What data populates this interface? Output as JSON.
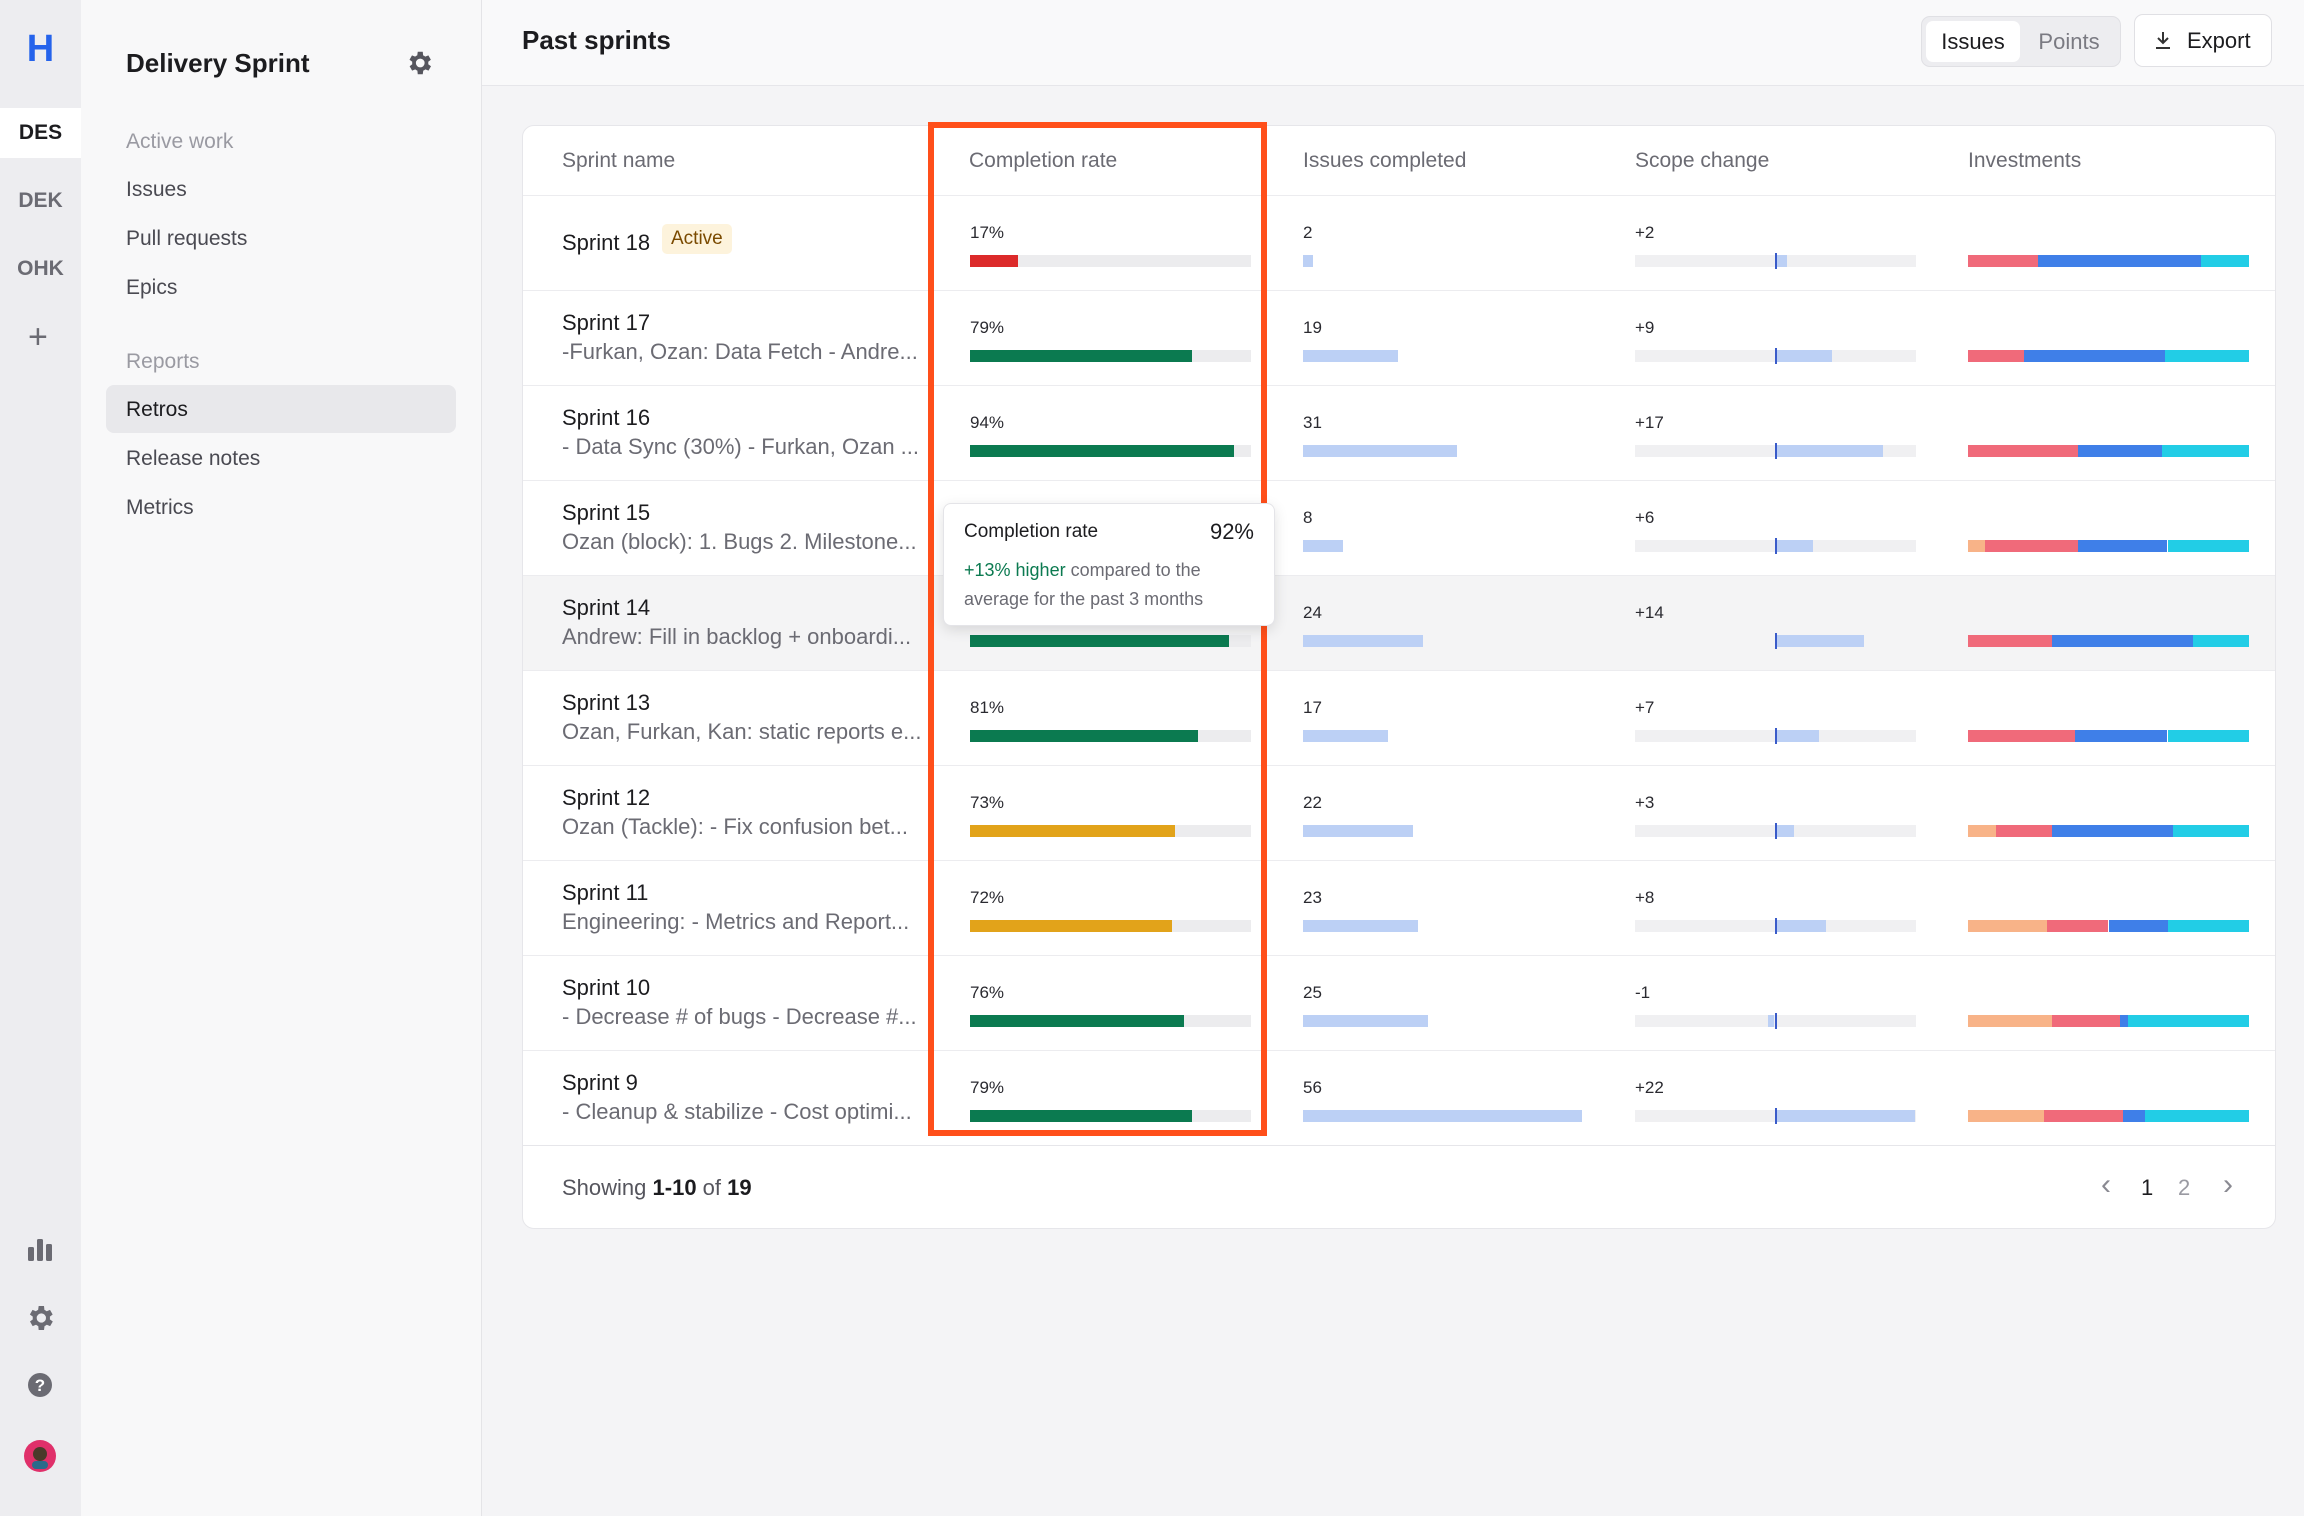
{
  "rail": {
    "logo": "H",
    "workspaces": [
      "DES",
      "DEK",
      "OHK"
    ]
  },
  "sidebar": {
    "title": "Delivery Sprint",
    "active": "Retros",
    "sections": [
      {
        "heading": "Active work",
        "items": [
          "Issues",
          "Pull requests",
          "Epics"
        ]
      },
      {
        "heading": "Reports",
        "items": [
          "Retros",
          "Release notes",
          "Metrics"
        ]
      }
    ]
  },
  "header": {
    "title": "Past sprints",
    "toggle": [
      "Issues",
      "Points"
    ],
    "export": "Export"
  },
  "table": {
    "columns": [
      "Sprint name",
      "Completion rate",
      "Issues completed",
      "Scope change",
      "Investments"
    ],
    "investment_colors": [
      "#f8b388",
      "#f06a7a",
      "#3f7fe8",
      "#22cde6"
    ],
    "rows": [
      {
        "name": "Sprint 18",
        "badge": "Active",
        "completion": {
          "value": 17,
          "label": "17%",
          "color": "#dc2a2a"
        },
        "issues": 2,
        "scope": {
          "value": 2,
          "label": "+2"
        },
        "investments": [
          0,
          25,
          58,
          17
        ]
      },
      {
        "name": "Sprint 17",
        "note": "-Furkan, Ozan: Data Fetch - Andre...",
        "completion": {
          "value": 79,
          "label": "79%",
          "color": "#0b7a50"
        },
        "issues": 19,
        "scope": {
          "value": 9,
          "label": "+9"
        },
        "investments": [
          0,
          20,
          50,
          30
        ]
      },
      {
        "name": "Sprint 16",
        "note": "- Data Sync (30%) - Furkan, Ozan ...",
        "completion": {
          "value": 94,
          "label": "94%",
          "color": "#0b7a50"
        },
        "issues": 31,
        "scope": {
          "value": 17,
          "label": "+17"
        },
        "investments": [
          0,
          39,
          30,
          31
        ]
      },
      {
        "name": "Sprint 15",
        "note": "Ozan (block): 1. Bugs 2. Milestone...",
        "completion": null,
        "issues": 8,
        "scope": {
          "value": 6,
          "label": "+6"
        },
        "investments": [
          6,
          33,
          32,
          29
        ]
      },
      {
        "name": "Sprint 14",
        "note": "Andrew: Fill in backlog + onboardi...",
        "completion": {
          "value": 92,
          "color": "#0b7a50"
        },
        "issues": 24,
        "scope": {
          "value": 14,
          "label": "+14"
        },
        "investments": [
          0,
          30,
          50,
          20
        ]
      },
      {
        "name": "Sprint 13",
        "note": "Ozan, Furkan, Kan: static reports e...",
        "completion": {
          "value": 81,
          "label": "81%",
          "color": "#0b7a50"
        },
        "issues": 17,
        "scope": {
          "value": 7,
          "label": "+7"
        },
        "investments": [
          0,
          38,
          33,
          29
        ]
      },
      {
        "name": "Sprint 12",
        "note": "Ozan (Tackle): - Fix confusion bet...",
        "completion": {
          "value": 73,
          "label": "73%",
          "color": "#e2a31a"
        },
        "issues": 22,
        "scope": {
          "value": 3,
          "label": "+3"
        },
        "investments": [
          10,
          20,
          43,
          27
        ]
      },
      {
        "name": "Sprint 11",
        "note": "Engineering: - Metrics and Report...",
        "completion": {
          "value": 72,
          "label": "72%",
          "color": "#e2a31a"
        },
        "issues": 23,
        "scope": {
          "value": 8,
          "label": "+8"
        },
        "investments": [
          28,
          22,
          21,
          29
        ]
      },
      {
        "name": "Sprint 10",
        "note": "- Decrease # of bugs - Decrease #...",
        "completion": {
          "value": 76,
          "label": "76%",
          "color": "#0b7a50"
        },
        "issues": 25,
        "scope": {
          "value": -1,
          "label": "-1"
        },
        "investments": [
          30,
          24,
          3,
          43
        ]
      },
      {
        "name": "Sprint 9",
        "note": "- Cleanup & stabilize - Cost optimi...",
        "completion": {
          "value": 79,
          "label": "79%",
          "color": "#0b7a50"
        },
        "issues": 56,
        "scope": {
          "value": 22,
          "label": "+22"
        },
        "investments": [
          27,
          28,
          8,
          37
        ]
      }
    ]
  },
  "tooltip": {
    "title": "Completion rate",
    "value": "92%",
    "highlight": "+13% higher",
    "text": "compared to the average for the past 3 months"
  },
  "footer": {
    "parts": [
      "Showing ",
      "1-10",
      " of ",
      "19"
    ],
    "pages": [
      "1",
      "2"
    ]
  }
}
